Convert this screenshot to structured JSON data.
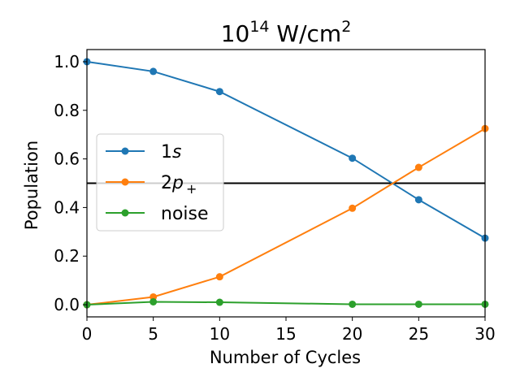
{
  "chart_data": {
    "type": "line",
    "title": "10",
    "title_exponent": "14",
    "title_unit": "W/cm",
    "title_unit_exponent": "2",
    "xlabel": "Number of Cycles",
    "ylabel": "Population",
    "xlim": [
      0,
      30
    ],
    "ylim": [
      -0.05,
      1.05
    ],
    "xticks": [
      0,
      5,
      10,
      15,
      20,
      25,
      30
    ],
    "xtick_labels": [
      "0",
      "5",
      "10",
      "15",
      "20",
      "25",
      "30"
    ],
    "yticks": [
      0.0,
      0.2,
      0.4,
      0.6,
      0.8,
      1.0
    ],
    "ytick_labels": [
      "0.0",
      "0.2",
      "0.4",
      "0.6",
      "0.8",
      "1.0"
    ],
    "x": [
      0,
      5,
      10,
      20,
      25,
      30
    ],
    "series": [
      {
        "name": "1s",
        "name_math": "s",
        "name_prefix": "1",
        "color": "#1f77b4",
        "values": [
          1.0,
          0.96,
          0.877,
          0.603,
          0.432,
          0.274
        ]
      },
      {
        "name": "2p+",
        "name_math": "p",
        "name_prefix": "2",
        "name_sub": "+",
        "color": "#ff7f0e",
        "values": [
          0.0,
          0.032,
          0.115,
          0.397,
          0.565,
          0.725
        ]
      },
      {
        "name": "noise",
        "color": "#2ca02c",
        "values": [
          0.0,
          0.012,
          0.01,
          0.002,
          0.002,
          0.002
        ]
      }
    ],
    "reference_line": {
      "y": 0.5,
      "color": "#000000"
    },
    "legend_position": "center-left",
    "grid": false
  }
}
